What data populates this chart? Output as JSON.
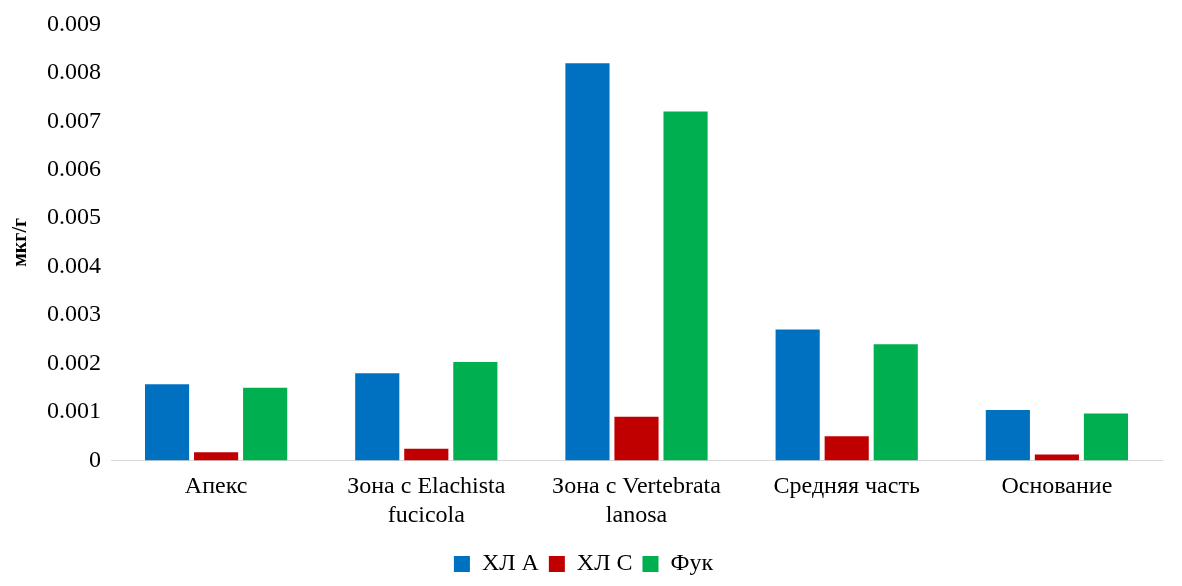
{
  "chart_data": {
    "type": "bar",
    "ylabel": "мкг/г",
    "categories": [
      "Апекс",
      "Зона с Elachista fucicola",
      "Зона с Vertebrata lanosa",
      "Средняя часть",
      "Основание"
    ],
    "series": [
      {
        "name": "ХЛ А",
        "color": "#0070c0",
        "values": [
          0.00157,
          0.0018,
          0.0082,
          0.0027,
          0.00104
        ]
      },
      {
        "name": "ХЛ С",
        "color": "#c00000",
        "values": [
          0.00017,
          0.00024,
          0.0009,
          0.0005,
          0.00012
        ]
      },
      {
        "name": "Фук",
        "color": "#00b050",
        "values": [
          0.0015,
          0.00203,
          0.0072,
          0.0024,
          0.00097
        ]
      }
    ],
    "ylim": [
      0,
      0.009
    ],
    "yticks": [
      0,
      0.001,
      0.002,
      0.003,
      0.004,
      0.005,
      0.006,
      0.007,
      0.008,
      0.009
    ],
    "grid": false,
    "legend": "bottom"
  }
}
